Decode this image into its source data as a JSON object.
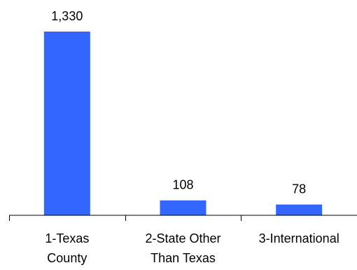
{
  "chart_data": {
    "type": "bar",
    "categories": [
      [
        "1-Texas",
        "County"
      ],
      [
        "2-State Other",
        "Than Texas"
      ],
      [
        "3-International"
      ]
    ],
    "values": [
      1330,
      108,
      78
    ],
    "value_labels": [
      "1,330",
      "108",
      "78"
    ],
    "ylim": [
      0,
      1330
    ],
    "grid": false,
    "legend": "none",
    "bar_color": "#3366FF",
    "axis_color": "#000000"
  }
}
